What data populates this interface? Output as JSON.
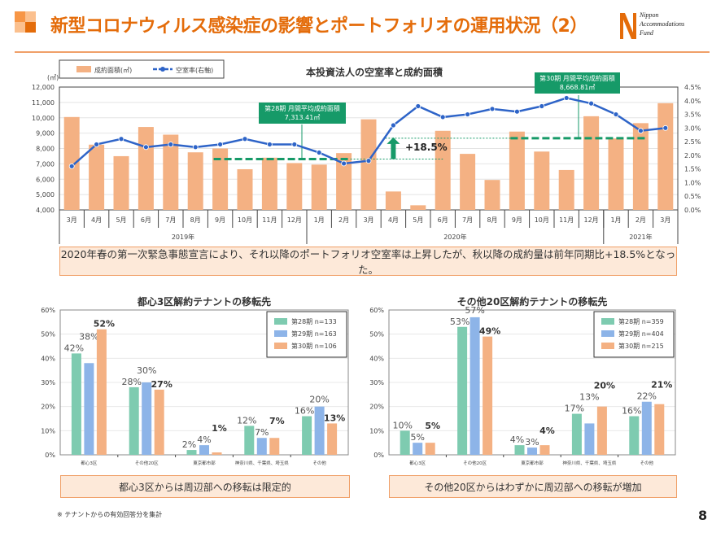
{
  "header": {
    "title": "新型コロナウィルス感染症の影響とポートフォリオの運用状況（2）",
    "logo_lines": [
      "Nippon",
      "Accommodations",
      "Fund"
    ],
    "accent": "#E46C0A"
  },
  "chart_data": [
    {
      "type": "bar+line",
      "title": "本投資法人の空室率と成約面積",
      "y_unit": "(㎡)",
      "legend": {
        "bar": "成約面積(㎡)",
        "line": "空室率(右軸)",
        "placement": "top-left"
      },
      "months": [
        "3月",
        "4月",
        "5月",
        "6月",
        "7月",
        "8月",
        "9月",
        "10月",
        "11月",
        "12月",
        "1月",
        "2月",
        "3月",
        "4月",
        "5月",
        "6月",
        "7月",
        "8月",
        "9月",
        "10月",
        "11月",
        "12月",
        "1月",
        "2月",
        "3月"
      ],
      "years": [
        {
          "label": "2019年",
          "start": 0,
          "end": 9
        },
        {
          "label": "2020年",
          "start": 10,
          "end": 21
        },
        {
          "label": "2021年",
          "start": 22,
          "end": 24
        }
      ],
      "bar_values": [
        10050,
        8250,
        7500,
        9400,
        8900,
        7750,
        8000,
        6650,
        7400,
        7050,
        6950,
        7700,
        9900,
        5200,
        4300,
        9150,
        7650,
        5950,
        9100,
        7800,
        6600,
        10100,
        8650,
        9650,
        10950
      ],
      "line_values": [
        1.6,
        2.4,
        2.6,
        2.3,
        2.4,
        2.3,
        2.4,
        2.6,
        2.4,
        2.4,
        2.1,
        1.7,
        1.8,
        3.1,
        3.8,
        3.4,
        3.5,
        3.7,
        3.6,
        3.8,
        4.1,
        3.9,
        3.5,
        2.9,
        3.0
      ],
      "ylim": [
        4000,
        12000
      ],
      "y_ticks": [
        "4,000",
        "5,000",
        "6,000",
        "7,000",
        "8,000",
        "9,000",
        "10,000",
        "11,000",
        "12,000"
      ],
      "y2lim": [
        0,
        4.5
      ],
      "y2_ticks": [
        "0.0%",
        "0.5%",
        "1.0%",
        "1.5%",
        "2.0%",
        "2.5%",
        "3.0%",
        "3.5%",
        "4.0%",
        "4.5%"
      ],
      "averages": [
        {
          "label": "第28期 月間平均成約面積",
          "value_text": "7,313.41㎡",
          "value": 7313.41,
          "start": 6,
          "end": 11
        },
        {
          "label": "第30期 月間平均成約面積",
          "value_text": "8,668.81㎡",
          "value": 8668.81,
          "start": 18,
          "end": 23
        }
      ],
      "change_label": "+18.5%",
      "colors": {
        "bar": "#F4B183",
        "line": "#2E64C8",
        "average": "#169a68"
      }
    },
    {
      "type": "bar",
      "title": "都心3区解約テナントの移転先",
      "categories": [
        "都心3区",
        "その他20区",
        "東京都市部",
        "神奈川県、千葉県、埼玉県",
        "その他"
      ],
      "ylim": [
        0,
        60
      ],
      "y_ticks": [
        "0%",
        "10%",
        "20%",
        "30%",
        "40%",
        "50%",
        "60%"
      ],
      "series": [
        {
          "name": "第28期 n=133",
          "values": [
            42,
            28,
            2,
            12,
            16
          ],
          "color": "#7ECBB0"
        },
        {
          "name": "第29期 n=163",
          "values": [
            38,
            30,
            4,
            7,
            20
          ],
          "color": "#8DB4E8"
        },
        {
          "name": "第30期 n=106",
          "values": [
            52,
            27,
            1,
            7,
            13
          ],
          "color": "#F4B183"
        }
      ],
      "legend": "top-right"
    },
    {
      "type": "bar",
      "title": "その他20区解約テナントの移転先",
      "categories": [
        "都心3区",
        "その他20区",
        "東京都市部",
        "神奈川県、千葉県、埼玉県",
        "その他"
      ],
      "ylim": [
        0,
        60
      ],
      "y_ticks": [
        "0%",
        "10%",
        "20%",
        "30%",
        "40%",
        "50%",
        "60%"
      ],
      "series": [
        {
          "name": "第28期 n=359",
          "values": [
            10,
            53,
            4,
            17,
            16
          ],
          "color": "#7ECBB0"
        },
        {
          "name": "第29期 n=404",
          "values": [
            5,
            57,
            3,
            13,
            22
          ],
          "color": "#8DB4E8"
        },
        {
          "name": "第30期 n=215",
          "values": [
            5,
            49,
            4,
            20,
            21
          ],
          "color": "#F4B183"
        }
      ],
      "legend": "top-right"
    }
  ],
  "callouts": {
    "top": "2020年春の第一次緊急事態宣言により、それ以降のポートフォリオ空室率は上昇したが、秋以降の成約量は前年同期比+18.5%となった。",
    "left": "都心3区からは周辺部への移転は限定的",
    "right": "その他20区からはわずかに周辺部への移転が増加"
  },
  "footnote": "※ テナントからの有効回答分を集計",
  "page_number": "8"
}
